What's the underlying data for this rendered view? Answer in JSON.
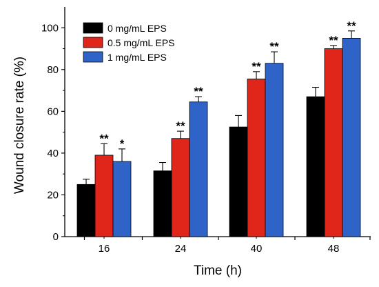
{
  "chart_data": {
    "type": "bar",
    "xlabel": "Time (h)",
    "ylabel": "Wound closure rate (%)",
    "ylim": [
      0,
      110
    ],
    "yticks": [
      0,
      20,
      40,
      60,
      80,
      100
    ],
    "categories": [
      "16",
      "24",
      "40",
      "48"
    ],
    "legend_position": "top-left",
    "series": [
      {
        "name": "0 mg/mL EPS",
        "color": "#000000",
        "values": [
          25,
          31.5,
          52.5,
          67
        ],
        "errors": [
          2.5,
          4,
          5.5,
          4.5
        ],
        "significance": [
          "",
          "",
          "",
          ""
        ]
      },
      {
        "name": "0.5 mg/mL EPS",
        "color": "#e0251b",
        "values": [
          39,
          47,
          75.5,
          90
        ],
        "errors": [
          5.5,
          3.5,
          3.5,
          1.5
        ],
        "significance": [
          "**",
          "**",
          "**",
          "**"
        ]
      },
      {
        "name": "1 mg/mL EPS",
        "color": "#2f63c8",
        "values": [
          36,
          64.5,
          83,
          95
        ],
        "errors": [
          6,
          2.5,
          5.5,
          3.5
        ],
        "significance": [
          "*",
          "**",
          "**",
          "**"
        ]
      }
    ]
  }
}
